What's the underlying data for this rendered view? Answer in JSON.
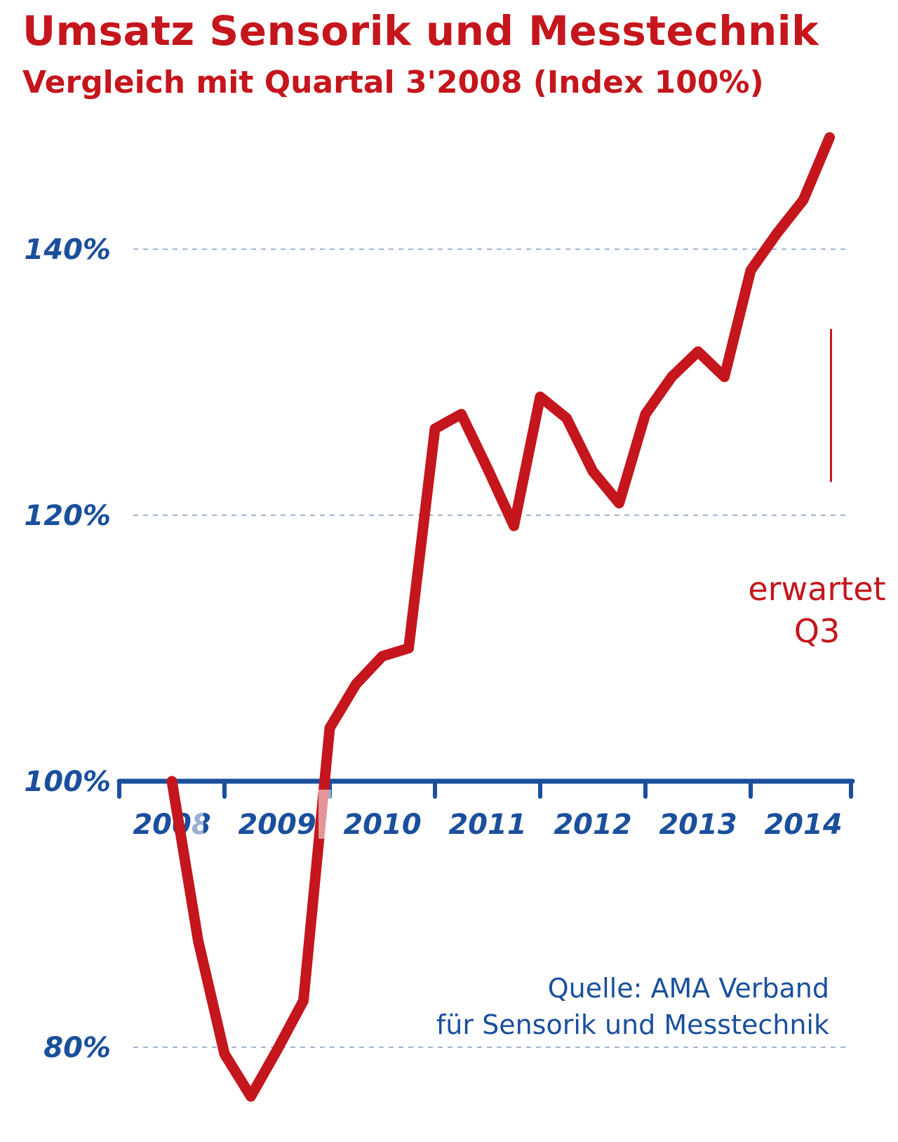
{
  "chart_data": {
    "type": "line",
    "title": "Umsatz Sensorik und Messtechnik",
    "subtitle": "Vergleich mit Quartal 3'2008 (Index 100%)",
    "xlabel": "",
    "ylabel": "",
    "x_ticks": [
      "2008",
      "2009",
      "2010",
      "2011",
      "2012",
      "2013",
      "2014"
    ],
    "y_ticks": [
      "80%",
      "100%",
      "120%",
      "140%"
    ],
    "y_tick_values": [
      80,
      100,
      120,
      140
    ],
    "ylim": [
      76,
      152
    ],
    "xlim": [
      2008.0,
      2015.0
    ],
    "grid": "dashed horizontal",
    "series": [
      {
        "name": "",
        "color": "#c4161c",
        "x": [
          2008.5,
          2008.75,
          2009.0,
          2009.25,
          2009.5,
          2009.75,
          2010.0,
          2010.25,
          2010.5,
          2010.75,
          2011.0,
          2011.25,
          2011.5,
          2011.75,
          2012.0,
          2012.25,
          2012.5,
          2012.75,
          2013.0,
          2013.25,
          2013.5,
          2013.75,
          2014.0,
          2014.25,
          2014.5,
          2014.75
        ],
        "y": [
          100.0,
          88.0,
          79.5,
          76.3,
          79.8,
          83.5,
          104.0,
          107.3,
          109.4,
          110.0,
          126.5,
          127.6,
          123.5,
          119.2,
          128.9,
          127.3,
          123.3,
          120.9,
          127.6,
          130.4,
          132.3,
          130.4,
          138.4,
          141.2,
          143.7,
          148.4
        ]
      }
    ],
    "annotations": [
      {
        "text_line1": "erwartet",
        "text_line2": "Q3",
        "x": 2014.75,
        "y_range": [
          122.5,
          134.0
        ]
      }
    ],
    "colors": {
      "line": "#c4161c",
      "axis": "#1a4f9c",
      "grid": "#9fb4d6"
    }
  },
  "source": {
    "line1": "Quelle: AMA Verband",
    "line2": "für Sensorik und Messtechnik"
  }
}
